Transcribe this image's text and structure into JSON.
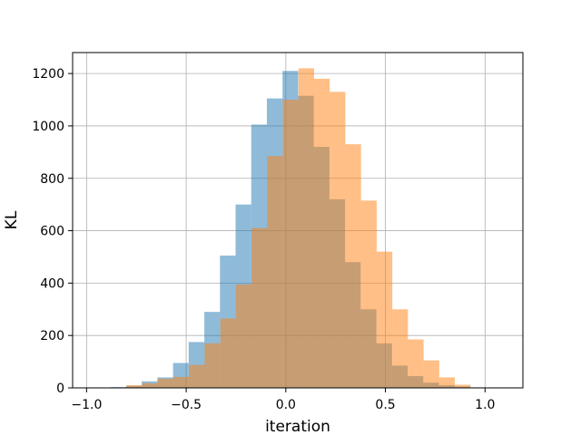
{
  "chart_data": {
    "type": "bar",
    "title": "",
    "xlabel": "iteration",
    "ylabel": "KL",
    "xlim": [
      -1.07,
      1.19
    ],
    "ylim": [
      0,
      1280
    ],
    "xticks": [
      -1.0,
      -0.5,
      0.0,
      0.5,
      1.0
    ],
    "xtick_labels": [
      "−1.0",
      "−0.5",
      "0.0",
      "0.5",
      "1.0"
    ],
    "yticks": [
      0,
      200,
      400,
      600,
      800,
      1000,
      1200
    ],
    "ytick_labels": [
      "0",
      "200",
      "400",
      "600",
      "800",
      "1000",
      "1200"
    ],
    "grid": true,
    "legend": null,
    "series": [
      {
        "color": "#1f77b4",
        "opacity": 0.5,
        "bin_width": 0.0785,
        "bin_starts": [
          -0.88,
          -0.8015,
          -0.723,
          -0.6445,
          -0.566,
          -0.4875,
          -0.409,
          -0.3305,
          -0.252,
          -0.1735,
          -0.095,
          -0.0165,
          0.062,
          0.1405,
          0.219,
          0.2975,
          0.376,
          0.4545,
          0.533,
          0.6115,
          0.69,
          0.7685,
          0.847,
          0.9255,
          1.004
        ],
        "values": [
          3,
          8,
          25,
          40,
          95,
          175,
          290,
          505,
          700,
          1005,
          1105,
          1210,
          1115,
          920,
          720,
          480,
          300,
          170,
          85,
          45,
          20,
          10,
          5,
          2,
          1
        ]
      },
      {
        "color": "#ff7f0e",
        "opacity": 0.5,
        "bin_width": 0.0785,
        "bin_starts": [
          -0.8,
          -0.7215,
          -0.643,
          -0.5645,
          -0.486,
          -0.4075,
          -0.329,
          -0.2505,
          -0.172,
          -0.0935,
          -0.015,
          0.0635,
          0.142,
          0.2205,
          0.299,
          0.3775,
          0.456,
          0.5345,
          0.613,
          0.6915,
          0.77,
          0.8485
        ],
        "values": [
          10,
          18,
          35,
          42,
          88,
          170,
          265,
          395,
          610,
          885,
          1100,
          1220,
          1180,
          1130,
          930,
          715,
          520,
          300,
          185,
          105,
          40,
          12
        ]
      }
    ]
  }
}
